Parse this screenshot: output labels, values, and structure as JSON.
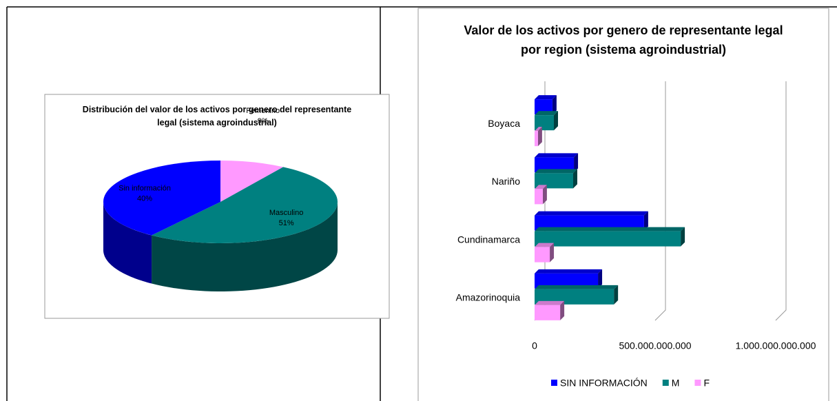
{
  "chart_data": [
    {
      "type": "pie",
      "title": "Distribución del valor de los activos por genero del representante legal  (sistema agroindustrial)",
      "categories": [
        "Femenino",
        "Masculino",
        "Sin información"
      ],
      "values": [
        9,
        51,
        40
      ],
      "value_labels": [
        "9%",
        "51%",
        "40%"
      ],
      "colors": [
        "#ff99ff",
        "#008080",
        "#0000ff"
      ]
    },
    {
      "type": "hbar",
      "title": "Valor de los activos por genero de representante legal por region (sistema agroindustrial)",
      "categories": [
        "Boyaca",
        "Nariño",
        "Cundinamarca",
        "Amazorinoquia"
      ],
      "series": [
        {
          "name": "SIN INFORMACIÓN",
          "color": "#0000ff",
          "values": [
            74000000000,
            163000000000,
            454000000000,
            263000000000
          ]
        },
        {
          "name": "M",
          "color": "#008080",
          "values": [
            80000000000,
            160000000000,
            606000000000,
            329000000000
          ]
        },
        {
          "name": "F",
          "color": "#ff99ff",
          "values": [
            14000000000,
            34000000000,
            63000000000,
            106000000000
          ]
        }
      ],
      "xlim": [
        0,
        1000000000000
      ],
      "xticks": [
        0,
        {
          "value": 500000000000,
          "label": "500.000.000.000"
        },
        {
          "value": 1000000000000,
          "label": "1.000.000.000.000"
        }
      ],
      "grid": true,
      "legend": "bottom"
    }
  ]
}
